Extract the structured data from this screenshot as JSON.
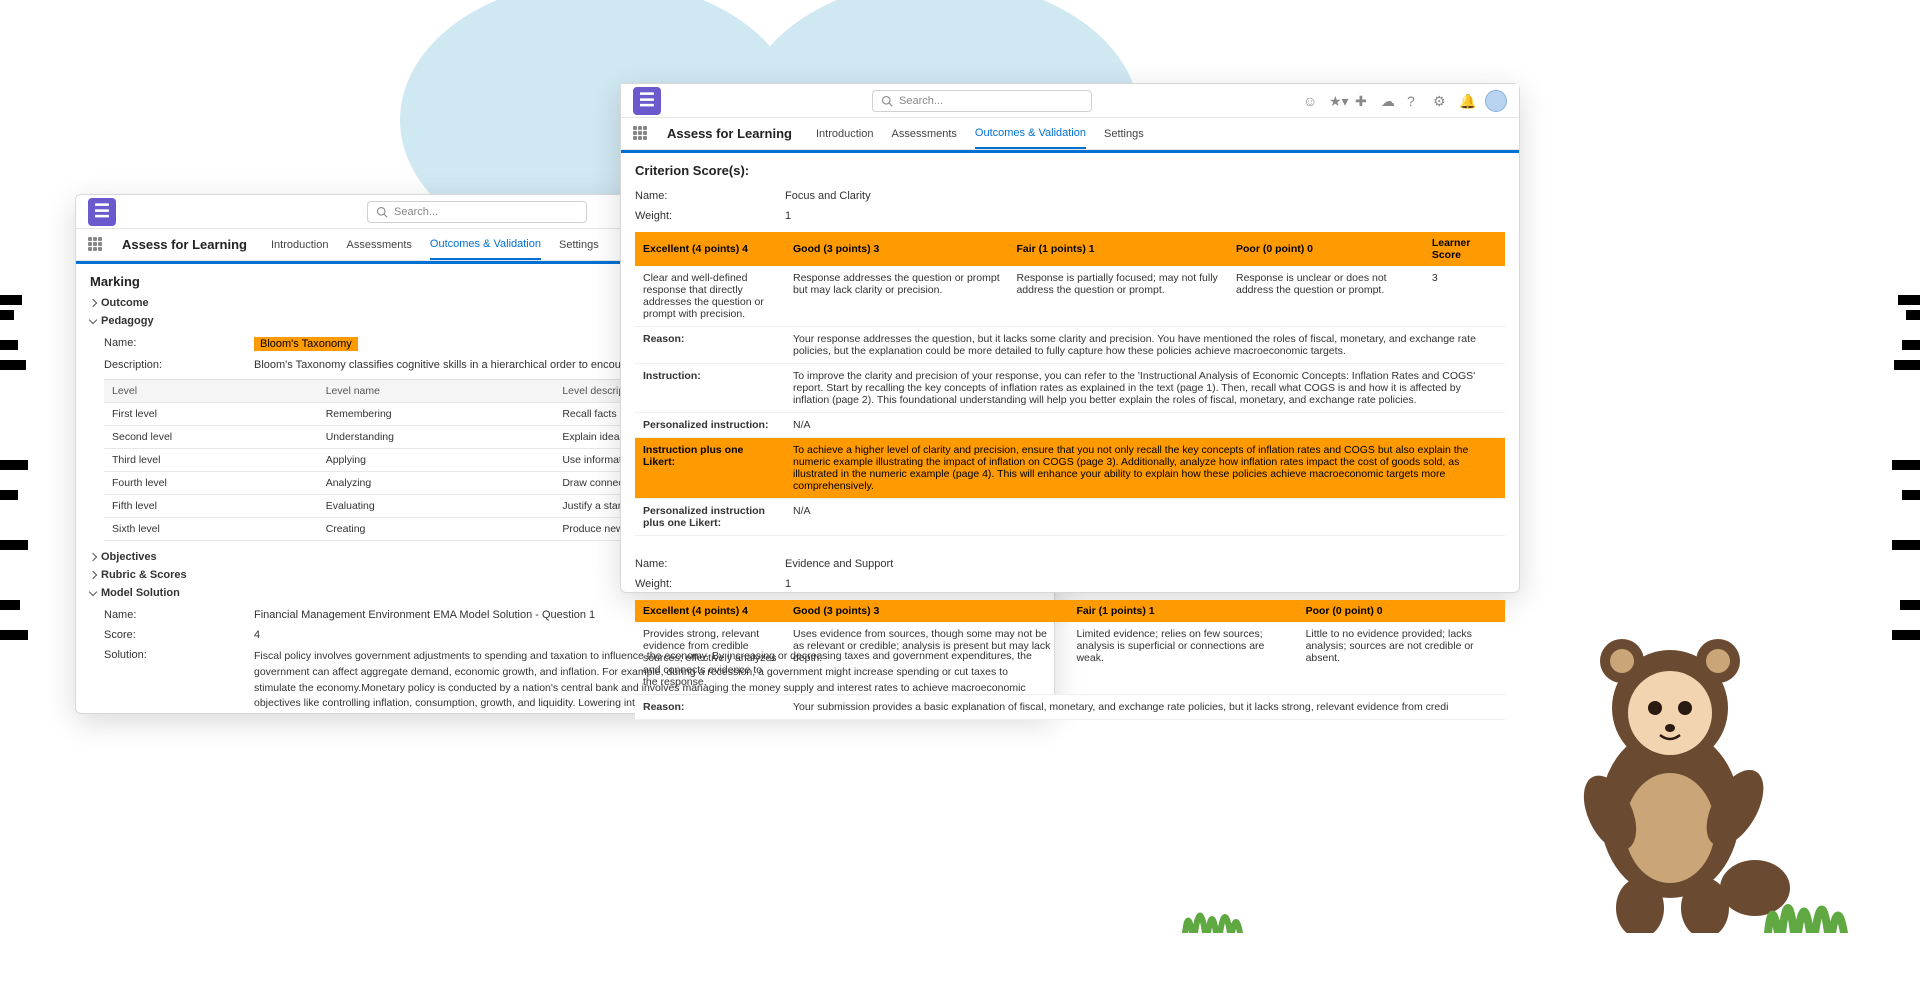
{
  "appName": "Assess for Learning",
  "searchPlaceholder": "Search...",
  "nav": [
    "Introduction",
    "Assessments",
    "Outcomes & Validation",
    "Settings"
  ],
  "navActiveIndex": 2,
  "left": {
    "heading": "Marking",
    "acc": {
      "outcome": "Outcome",
      "pedagogy": "Pedagogy",
      "objectives": "Objectives",
      "rubric": "Rubric & Scores",
      "model": "Model Solution"
    },
    "pedagogy": {
      "nameLabel": "Name:",
      "nameValue": "Bloom's Taxonomy",
      "descLabel": "Description:",
      "descValue": "Bloom's Taxonomy classifies cognitive skills in a hierarchical order to encourage deeper levels of learning",
      "tableHeaders": [
        "Level",
        "Level name",
        "Level description"
      ],
      "rows": [
        [
          "First level",
          "Remembering",
          "Recall facts and basic concepts."
        ],
        [
          "Second level",
          "Understanding",
          "Explain ideas or concepts."
        ],
        [
          "Third level",
          "Applying",
          "Use information in new situations."
        ],
        [
          "Fourth level",
          "Analyzing",
          "Draw connections among ideas."
        ],
        [
          "Fifth level",
          "Evaluating",
          "Justify a stand or decision."
        ],
        [
          "Sixth level",
          "Creating",
          "Produce new or original work."
        ]
      ]
    },
    "model": {
      "nameLabel": "Name:",
      "nameValue": "Financial Management Environment EMA Model Solution - Question 1",
      "scoreLabel": "Score:",
      "scoreValue": "4",
      "solutionLabel": "Solution:",
      "solutionText": "Fiscal policy involves government adjustments to spending and taxation to influence the economy. By increasing or decreasing taxes and government expenditures, the government can affect aggregate demand, economic growth, and inflation. For example, during a recession, a government might increase spending or cut taxes to stimulate the economy.Monetary policy is conducted by a nation's central bank and involves managing the money supply and interest rates to achieve macroeconomic objectives like controlling inflation, consumption, growth, and liquidity. Lowering interest rates makes borrowing cheaper, encouraging investment and spending, while raising rates can help control inflation.Exchange rate policy involves managing the value of the national currency against others. A weaker currency can boost exports by making them cheaper abroad, while a stronger currency can reduce inflation by making imports cheaper.These policies interact with business planning and decision-making by influencing costs, consumer demand, investment opportunities, and competitive dynamics. For instance, a business may adjust its investment plans based on expected changes in interest rates or may focus on export strategies if the domestic currency is devalued. Understanding government policies allows businesses to anticipate economic conditions and make"
    }
  },
  "right": {
    "heading": "Criterion Score(s):",
    "labels": {
      "name": "Name:",
      "weight": "Weight:",
      "reason": "Reason:",
      "instruction": "Instruction:",
      "personalized": "Personalized instruction:",
      "plusLikert": "Instruction plus one Likert:",
      "personalizedLikert": "Personalized instruction plus one Likert:",
      "learnerScore": "Learner Score"
    },
    "criteria": [
      {
        "name": "Focus and Clarity",
        "weight": "1",
        "headers": [
          "Excellent (4 points) 4",
          "Good (3 points) 3",
          "Fair (1 points) 1",
          "Poor (0 point) 0"
        ],
        "cells": [
          "Clear and well-defined response that directly addresses the question or prompt with precision.",
          "Response addresses the question or prompt but may lack clarity or precision.",
          "Response is partially focused; may not fully address the question or prompt.",
          "Response is unclear or does not address the question or prompt."
        ],
        "learnerScore": "3",
        "reason": "Your response addresses the question, but it lacks some clarity and precision. You have mentioned the roles of fiscal, monetary, and exchange rate policies, but the explanation could be more detailed to fully capture how these policies achieve macroeconomic targets.",
        "instruction": "To improve the clarity and precision of your response, you can refer to the 'Instructional Analysis of Economic Concepts: Inflation Rates and COGS' report. Start by recalling the key concepts of inflation rates as explained in the text (page 1). Then, recall what COGS is and how it is affected by inflation (page 2). This foundational understanding will help you better explain the roles of fiscal, monetary, and exchange rate policies.",
        "personalized": "N/A",
        "plusLikert": "To achieve a higher level of clarity and precision, ensure that you not only recall the key concepts of inflation rates and COGS but also explain the numeric example illustrating the impact of inflation on COGS (page 3). Additionally, analyze how inflation rates impact the cost of goods sold, as illustrated in the numeric example (page 4). This will enhance your ability to explain how these policies achieve macroeconomic targets more comprehensively.",
        "personalizedLikert": "N/A"
      },
      {
        "name": "Evidence and Support",
        "weight": "1",
        "headers": [
          "Excellent (4 points) 4",
          "Good (3 points) 3",
          "Fair (1 points) 1",
          "Poor (0 point) 0"
        ],
        "cells": [
          "Provides strong, relevant evidence from credible sources; effectively analyzes and connects evidence to the response.",
          "Uses evidence from sources, though some may not be as relevant or credible; analysis is present but may lack depth.",
          "Limited evidence; relies on few sources; analysis is superficial or connections are weak.",
          "Little to no evidence provided; lacks analysis; sources are not credible or absent."
        ],
        "reason": "Your submission provides a basic explanation of fiscal, monetary, and exchange rate policies, but it lacks strong, relevant evidence from credi"
      }
    ]
  }
}
